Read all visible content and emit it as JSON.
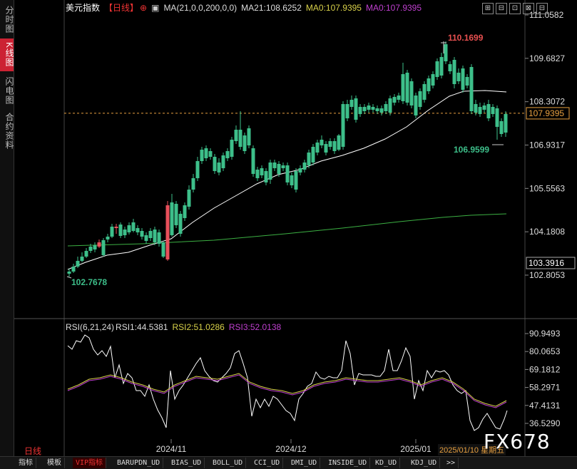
{
  "left_tabs": [
    "分时图",
    "K线图",
    "闪电图",
    "合约资料"
  ],
  "main_title": {
    "name": "美元指数",
    "period_tag": "【日线】",
    "ma_params": "MA(21,0,0,200,0,0)",
    "ma21": "MA21:108.6252",
    "ma0a": "MA0:107.9395",
    "ma0b": "MA0:107.9395"
  },
  "rsi_title": {
    "params": "RSI(6,21,24)",
    "rsi1": "RSI1:44.5381",
    "rsi2": "RSI2:51.0286",
    "rsi3": "RSI3:52.0138"
  },
  "price_axis_labels": [
    "111.0582",
    "109.6827",
    "108.3072",
    "106.9317",
    "105.5563",
    "104.1808",
    "102.8053"
  ],
  "rsi_axis_labels": [
    "90.9493",
    "80.0653",
    "69.1812",
    "58.2971",
    "47.4131",
    "36.5290"
  ],
  "current_price_label": "107.9395",
  "ma200_label": "103.3916",
  "annotations": {
    "high": "110.1699",
    "low_recent": "106.9599",
    "low_start": "102.7678"
  },
  "date_labels": [
    "2024/11",
    "2024/12",
    "2025/01"
  ],
  "period_label": "日线",
  "date_box": "2025/01/10 星期五",
  "watermark": "FX678",
  "top_icons": [
    "⊞",
    "⊟",
    "⊡",
    "⊠",
    "⊟"
  ],
  "bottom_tabs": [
    "指标",
    "模板",
    "VIP指标",
    "BARUPDN_UD",
    "BIAS_UD",
    "BOLL_UD",
    "CCI_UD",
    "DMI_UD",
    "INSIDE_UD",
    "KD_UD",
    "KDJ_UD",
    ">>"
  ],
  "colors": {
    "up": "#e8505b",
    "down": "#3dbf8a",
    "ma200": "#3cb043",
    "ma21": "#ffffff",
    "rsi2": "#d9d24a",
    "rsi3": "#c040d0",
    "current": "#e8a040"
  }
}
